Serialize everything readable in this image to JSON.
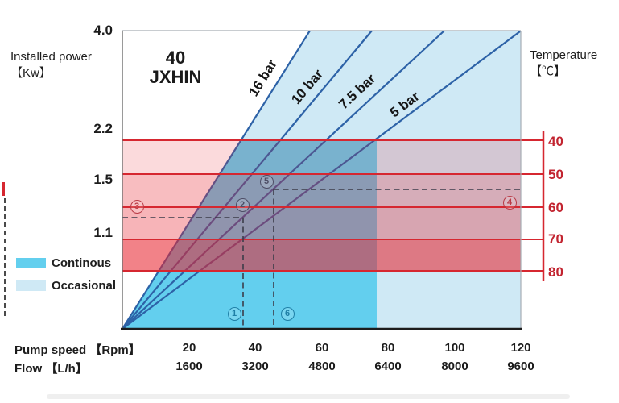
{
  "title": {
    "line1": "40",
    "line2": "JXHIN"
  },
  "header": {
    "power_axis_title_line1": "Installed power",
    "power_axis_title_line2": "【Kw】",
    "temp_axis_title_line1": "Temperature",
    "temp_axis_title_line2": "【℃】"
  },
  "legend": {
    "items": [
      {
        "label": "Continous",
        "color": "#63cfee"
      },
      {
        "label": "Occasional",
        "color": "#cfe9f5"
      }
    ]
  },
  "pressure_lines": [
    {
      "label": "16 bar"
    },
    {
      "label": "10 bar"
    },
    {
      "label": "7.5 bar"
    },
    {
      "label": "5 bar"
    }
  ],
  "axes": {
    "power_ticks": [
      "4.0",
      "2.2",
      "1.5",
      "1.1"
    ],
    "temp_ticks": [
      "40",
      "50",
      "60",
      "70",
      "80"
    ],
    "speed_label": "Pump speed 【Rpm】",
    "speed_ticks": [
      "20",
      "40",
      "60",
      "80",
      "100",
      "120"
    ],
    "flow_label": "Flow 【L/h】",
    "flow_ticks": [
      "1600",
      "3200",
      "4800",
      "6400",
      "8000",
      "9600"
    ]
  },
  "annotations": [
    {
      "id": "1"
    },
    {
      "id": "2"
    },
    {
      "id": "3"
    },
    {
      "id": "4"
    },
    {
      "id": "5"
    },
    {
      "id": "6"
    }
  ],
  "colors": {
    "continuous": "#63cfee",
    "occasional": "#cfe9f5",
    "pressure_line": "#2d62a7",
    "temp_line": "#d62730",
    "temp_band": "#e8232e"
  },
  "chart_data": {
    "type": "line",
    "title": "40 JXHIN",
    "x_axis": {
      "label": "Pump speed 【Rpm】",
      "range": [
        0,
        120
      ],
      "ticks": [
        20,
        40,
        60,
        80,
        100,
        120
      ]
    },
    "x_axis_secondary": {
      "label": "Flow 【L/h】",
      "ticks": [
        1600,
        3200,
        4800,
        6400,
        8000,
        9600
      ]
    },
    "y_axis": {
      "label": "Installed power 【Kw】",
      "range": [
        0,
        4.0
      ],
      "ticks": [
        4.0,
        2.2,
        1.5,
        1.1
      ],
      "scale": "nonlinear"
    },
    "y_axis_secondary": {
      "label": "Temperature 【℃】",
      "side": "right",
      "ticks": [
        40,
        50,
        60,
        70,
        80
      ]
    },
    "series": [
      {
        "name": "16 bar",
        "points_speed_kw": [
          [
            0,
            0
          ],
          [
            56,
            4.0
          ]
        ]
      },
      {
        "name": "10 bar",
        "points_speed_kw": [
          [
            0,
            0
          ],
          [
            75,
            4.0
          ]
        ]
      },
      {
        "name": "7.5 bar",
        "points_speed_kw": [
          [
            0,
            0
          ],
          [
            97,
            4.0
          ]
        ]
      },
      {
        "name": "5 bar",
        "points_speed_kw": [
          [
            0,
            0
          ],
          [
            120,
            4.0
          ]
        ]
      }
    ],
    "operating_regions": [
      {
        "name": "Continous",
        "color": "#63cfee",
        "speed_max": 77
      },
      {
        "name": "Occasional",
        "color": "#cfe9f5",
        "speed_max": 120
      }
    ],
    "temperature_bands": {
      "color": "#e8232e",
      "lines_c": [
        40,
        50,
        60,
        70,
        80
      ],
      "approx_power_kw_at_line": [
        2.1,
        1.55,
        1.3,
        1.05,
        0.85
      ]
    },
    "guide_points": [
      {
        "id": "1",
        "speed": 36
      },
      {
        "id": "2",
        "on_line": "7.5 bar",
        "speed": 36
      },
      {
        "id": "3",
        "power_kw": 1.2
      },
      {
        "id": "4",
        "temp_c": 55
      },
      {
        "id": "5",
        "on_line": "7.5 bar",
        "speed": 45
      },
      {
        "id": "6",
        "speed": 45
      }
    ],
    "grid": false,
    "legend_position": "left-bottom"
  }
}
